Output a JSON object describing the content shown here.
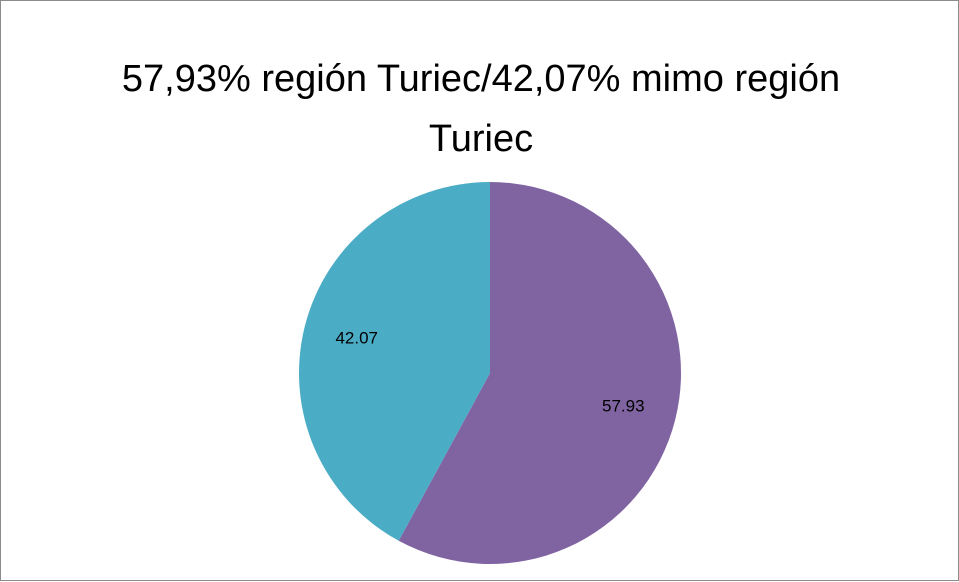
{
  "chart_data": {
    "type": "pie",
    "title": "57,93% región Turiec/42,07% mimo región Turiec",
    "series": [
      {
        "values": [
          57.93,
          42.07
        ],
        "colors": [
          "#8064a2",
          "#4bacc6"
        ]
      }
    ]
  }
}
